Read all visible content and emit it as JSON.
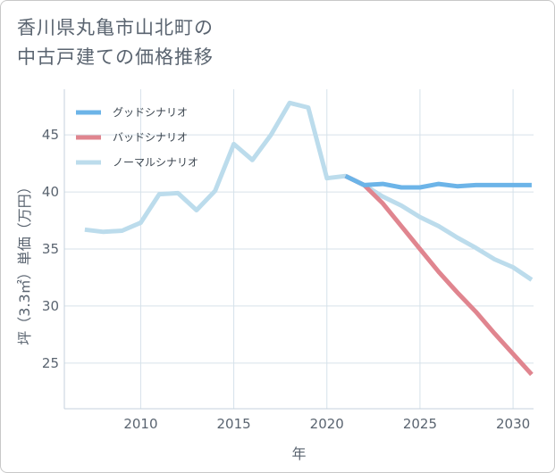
{
  "title": {
    "line1": "香川県丸亀市山北町の",
    "line2": "中古戸建ての価格推移"
  },
  "colors": {
    "good": "#6cb4e8",
    "bad": "#e0858f",
    "normal": "#bcdcec",
    "grid": "#d6e2ea",
    "text": "#5a6470"
  },
  "chart_data": {
    "type": "line",
    "title": "香川県丸亀市山北町の中古戸建ての価格推移",
    "xlabel": "年",
    "ylabel": "坪（3.3㎡）単価（万円）",
    "xlim": [
      2005.9,
      2031.1
    ],
    "ylim": [
      21,
      49
    ],
    "x_ticks": [
      2010,
      2015,
      2020,
      2025,
      2030
    ],
    "y_ticks": [
      25,
      30,
      35,
      40,
      45
    ],
    "grid": true,
    "legend_position": "top-left",
    "series": [
      {
        "name": "グッドシナリオ",
        "key": "good",
        "points": [
          [
            2021,
            41.4
          ],
          [
            2022,
            40.6
          ],
          [
            2023,
            40.7
          ],
          [
            2024,
            40.4
          ],
          [
            2025,
            40.4
          ],
          [
            2026,
            40.7
          ],
          [
            2027,
            40.5
          ],
          [
            2028,
            40.6
          ],
          [
            2029,
            40.6
          ],
          [
            2030,
            40.6
          ],
          [
            2031,
            40.6
          ]
        ]
      },
      {
        "name": "バッドシナリオ",
        "key": "bad",
        "points": [
          [
            2021,
            41.4
          ],
          [
            2022,
            40.6
          ],
          [
            2023,
            39.0
          ],
          [
            2024,
            37.0
          ],
          [
            2025,
            35.0
          ],
          [
            2026,
            33.0
          ],
          [
            2027,
            31.2
          ],
          [
            2028,
            29.5
          ],
          [
            2029,
            27.6
          ],
          [
            2030,
            25.8
          ],
          [
            2031,
            24.0
          ]
        ]
      },
      {
        "name": "ノーマルシナリオ",
        "key": "normal",
        "points": [
          [
            2007,
            36.7
          ],
          [
            2008,
            36.5
          ],
          [
            2009,
            36.6
          ],
          [
            2010,
            37.3
          ],
          [
            2011,
            39.8
          ],
          [
            2012,
            39.9
          ],
          [
            2013,
            38.4
          ],
          [
            2014,
            40.1
          ],
          [
            2015,
            44.2
          ],
          [
            2016,
            42.8
          ],
          [
            2017,
            45.0
          ],
          [
            2018,
            47.8
          ],
          [
            2019,
            47.4
          ],
          [
            2020,
            41.2
          ],
          [
            2021,
            41.4
          ],
          [
            2022,
            40.6
          ],
          [
            2023,
            39.6
          ],
          [
            2024,
            38.8
          ],
          [
            2025,
            37.8
          ],
          [
            2026,
            37.0
          ],
          [
            2027,
            36.0
          ],
          [
            2028,
            35.1
          ],
          [
            2029,
            34.1
          ],
          [
            2030,
            33.4
          ],
          [
            2031,
            32.3
          ]
        ]
      }
    ]
  }
}
